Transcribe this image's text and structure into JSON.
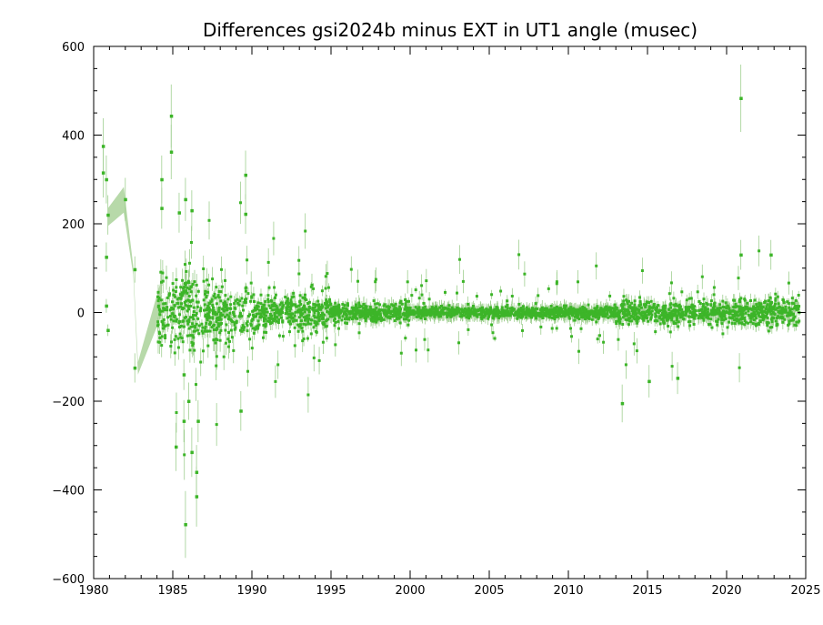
{
  "chart_data": {
    "type": "scatter",
    "title": "Differences gsi2024b minus EXT in UT1 angle   (musec)",
    "xlabel": "",
    "ylabel": "",
    "xlim": [
      1980,
      2025
    ],
    "ylim": [
      -600,
      600
    ],
    "x_ticks": [
      "1980",
      "1985",
      "1990",
      "1995",
      "2000",
      "2005",
      "2010",
      "2015",
      "2020",
      "2025"
    ],
    "y_ticks": [
      "600",
      "400",
      "200",
      "0",
      "−200",
      "−400",
      "−600"
    ],
    "grid": false,
    "legend": "none",
    "colors": {
      "points": "#3cb528",
      "error_bars": "#9fcf90",
      "band": "#b7d9a9",
      "axes": "#000000"
    },
    "highlighted_points": [
      {
        "x": 1980.6,
        "y": 375
      },
      {
        "x": 1980.6,
        "y": 315
      },
      {
        "x": 1980.8,
        "y": 300
      },
      {
        "x": 1980.9,
        "y": 220
      },
      {
        "x": 1980.8,
        "y": 125
      },
      {
        "x": 1980.8,
        "y": 15
      },
      {
        "x": 1980.9,
        "y": -40
      },
      {
        "x": 1982.0,
        "y": 255
      },
      {
        "x": 1982.6,
        "y": 97
      },
      {
        "x": 1982.6,
        "y": -125
      },
      {
        "x": 1984.3,
        "y": 300
      },
      {
        "x": 1984.3,
        "y": 235
      },
      {
        "x": 1984.9,
        "y": 443
      },
      {
        "x": 1984.9,
        "y": 362
      },
      {
        "x": 1985.2,
        "y": -303
      },
      {
        "x": 1985.4,
        "y": 225
      },
      {
        "x": 1985.7,
        "y": -140
      },
      {
        "x": 1985.7,
        "y": -245
      },
      {
        "x": 1985.8,
        "y": 255
      },
      {
        "x": 1985.8,
        "y": -478
      },
      {
        "x": 1986.0,
        "y": -200
      },
      {
        "x": 1986.2,
        "y": 230
      },
      {
        "x": 1986.2,
        "y": -315
      },
      {
        "x": 1986.5,
        "y": -360
      },
      {
        "x": 1986.5,
        "y": -415
      },
      {
        "x": 1986.6,
        "y": -245
      },
      {
        "x": 1989.3,
        "y": -222
      },
      {
        "x": 1989.6,
        "y": 310
      },
      {
        "x": 1989.6,
        "y": 222
      },
      {
        "x": 2013.4,
        "y": -205
      },
      {
        "x": 2015.1,
        "y": -155
      },
      {
        "x": 2016.9,
        "y": -148
      },
      {
        "x": 2020.9,
        "y": 483
      },
      {
        "x": 2020.9,
        "y": 130
      },
      {
        "x": 2022.8,
        "y": 130
      }
    ],
    "spread_by_period": [
      {
        "from": 1984.0,
        "to": 1987.0,
        "scatter": 45,
        "outlier_scatter": 160
      },
      {
        "from": 1987.0,
        "to": 1990.0,
        "scatter": 35,
        "outlier_scatter": 110
      },
      {
        "from": 1990.0,
        "to": 1995.0,
        "scatter": 22,
        "outlier_scatter": 90
      },
      {
        "from": 1995.0,
        "to": 2000.0,
        "scatter": 10,
        "outlier_scatter": 60
      },
      {
        "from": 2000.0,
        "to": 2013.0,
        "scatter": 6,
        "outlier_scatter": 55
      },
      {
        "from": 2013.0,
        "to": 2020.0,
        "scatter": 12,
        "outlier_scatter": 70
      },
      {
        "from": 2020.0,
        "to": 2024.6,
        "scatter": 16,
        "outlier_scatter": 70
      }
    ]
  }
}
